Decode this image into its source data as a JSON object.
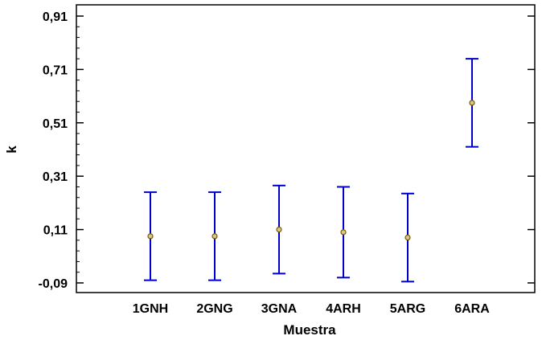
{
  "chart_data": {
    "type": "scatter",
    "title": "",
    "xlabel": "Muestra",
    "ylabel": "k",
    "categories": [
      "1GNH",
      "2GNG",
      "3GNA",
      "4ARH",
      "5ARG",
      "6ARA"
    ],
    "ylim": [
      -0.09,
      0.91
    ],
    "y_ticks": [
      "-0,09",
      "0,11",
      "0,31",
      "0,51",
      "0,71",
      "0,91"
    ],
    "grid": false,
    "series": [
      {
        "values": [
          0.085,
          0.085,
          0.11,
          0.1,
          0.08,
          0.585
        ],
        "lower": [
          -0.08,
          -0.08,
          -0.055,
          -0.07,
          -0.085,
          0.42
        ],
        "upper": [
          0.25,
          0.25,
          0.275,
          0.27,
          0.245,
          0.75
        ]
      }
    ],
    "colors": {
      "error_bar": "#0000cc",
      "point_stroke": "#7a5a00",
      "point_fill": "#d6c98a",
      "axis": "#000000"
    }
  }
}
